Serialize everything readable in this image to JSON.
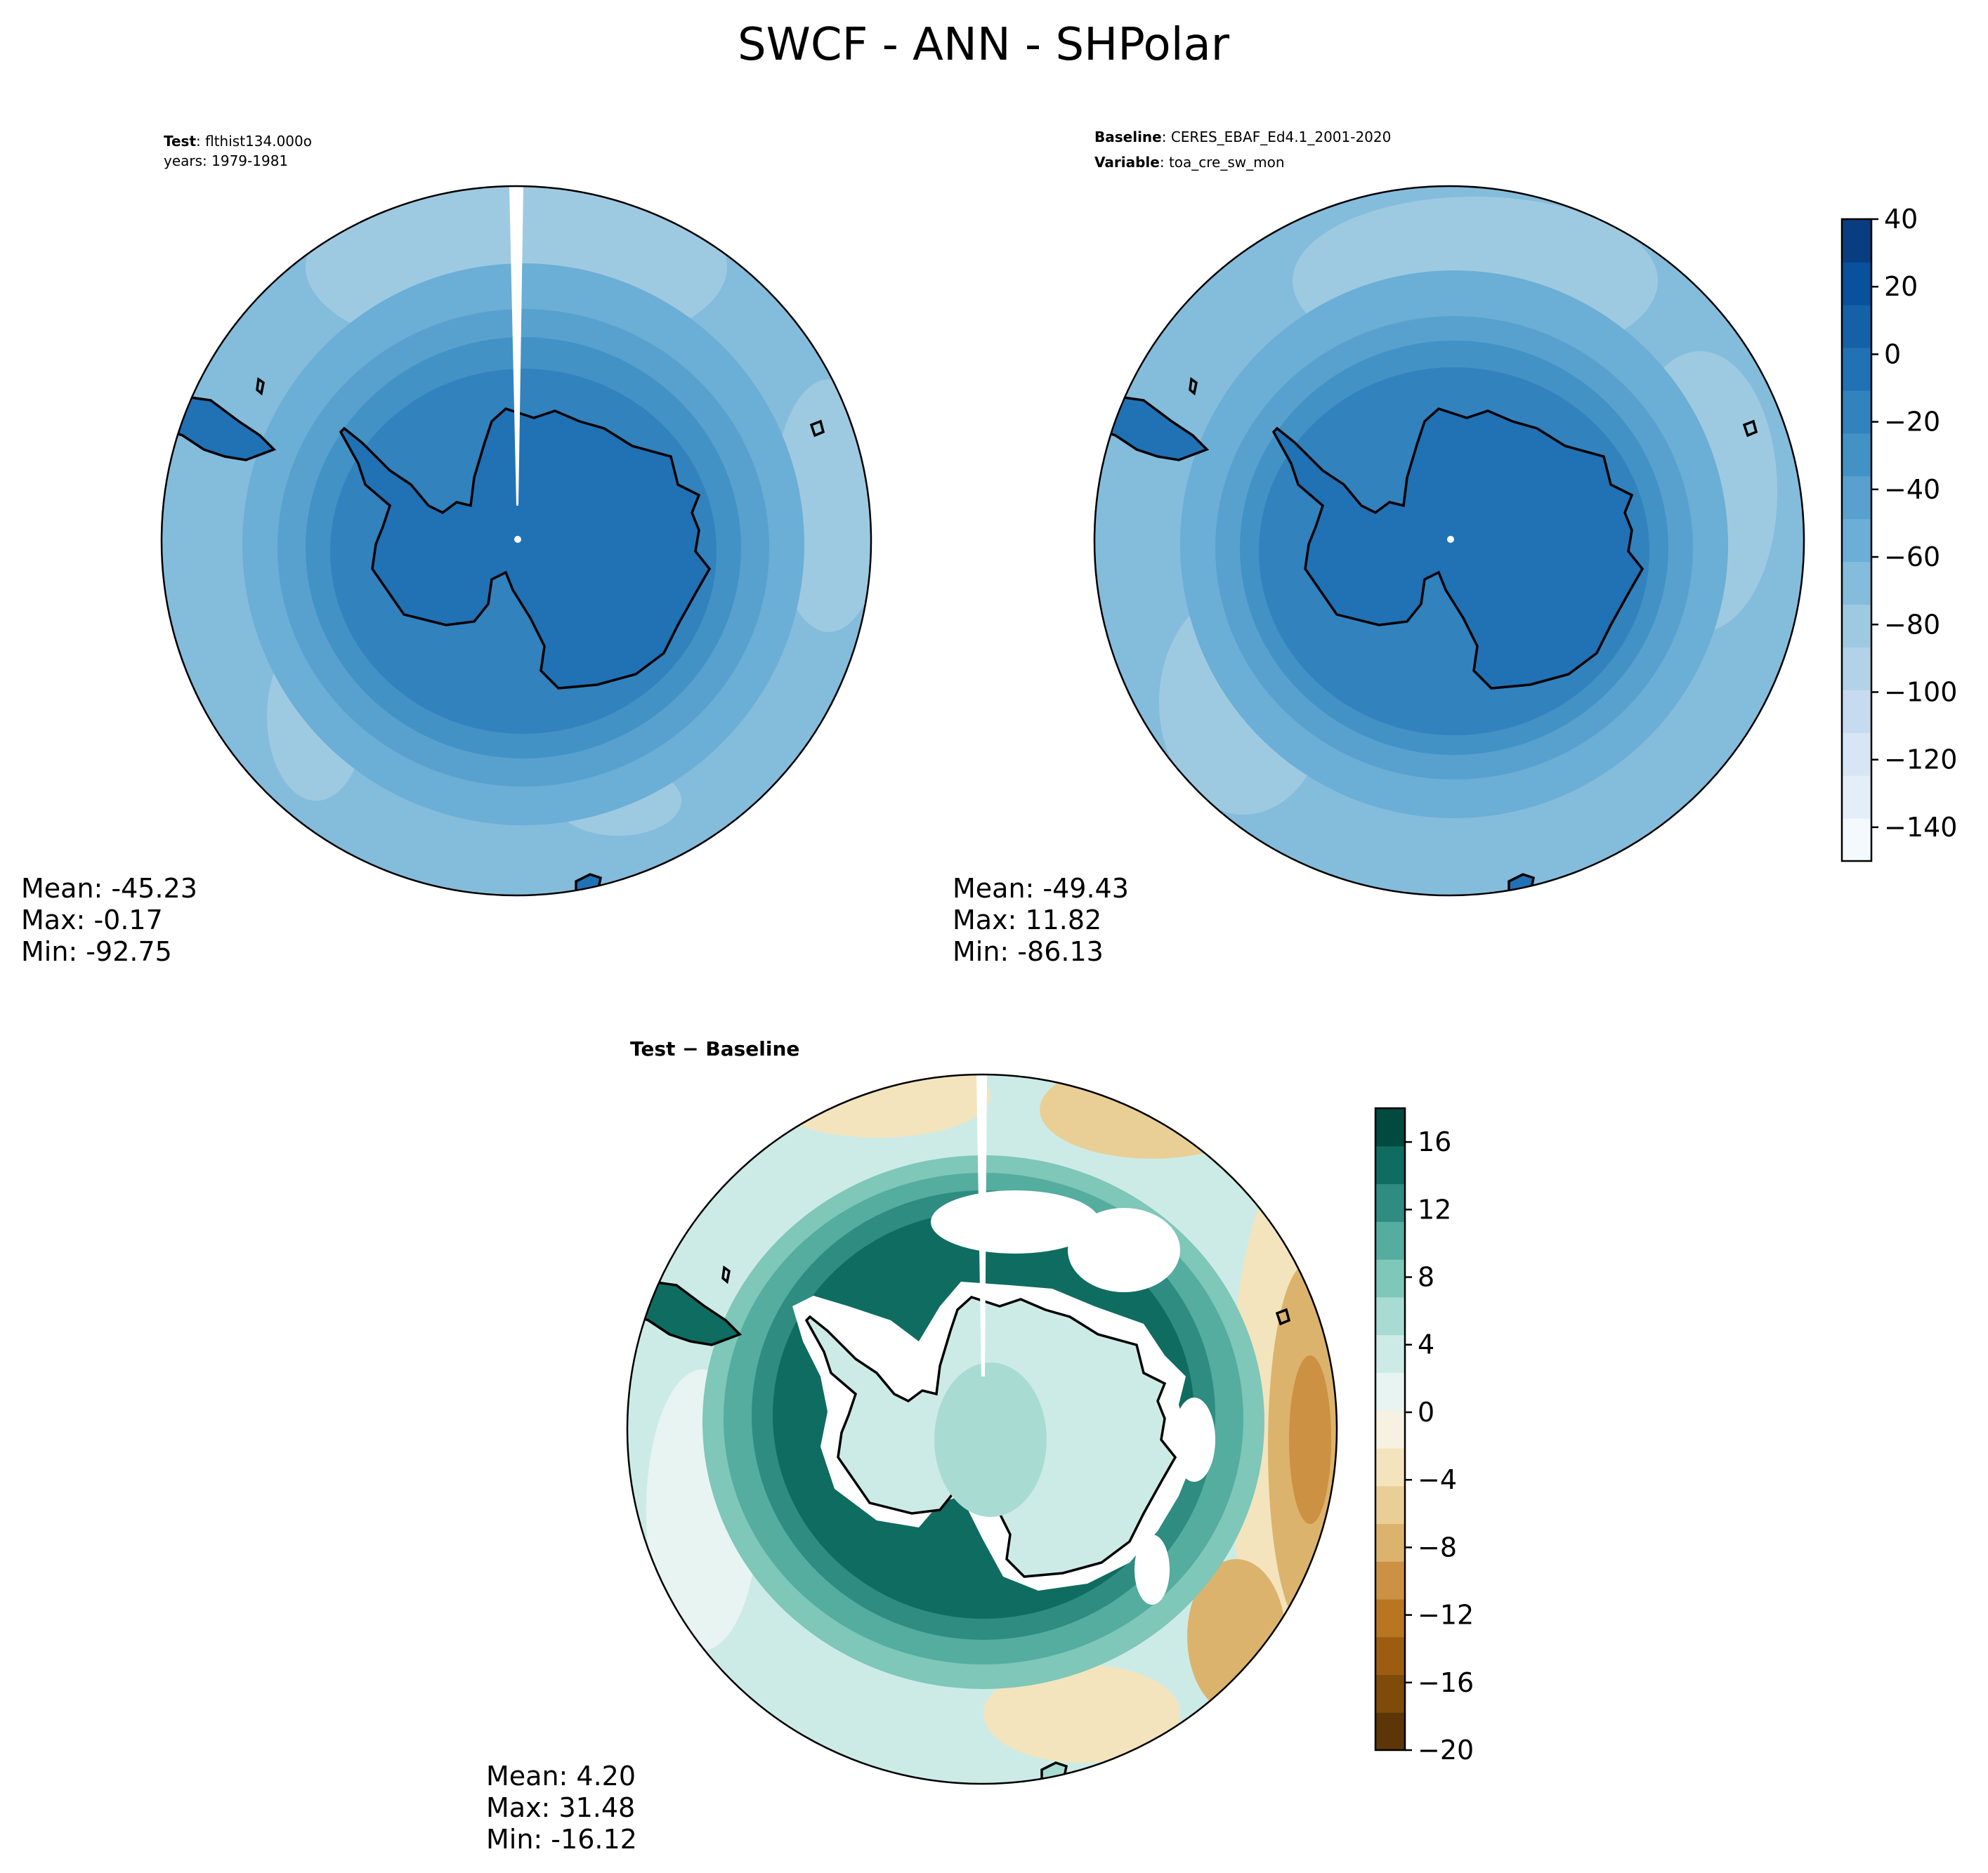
{
  "figure": {
    "title": "SWCF - ANN - SHPolar"
  },
  "panels": {
    "test": {
      "label_bold": "Test",
      "label_rest": ": flthist134.000o",
      "years": "years: 1979-1981",
      "stats": {
        "mean": "Mean: -45.23",
        "max": "Max: -0.17",
        "min": "Min: -92.75"
      }
    },
    "baseline": {
      "label_bold": "Baseline",
      "label_rest": ": CERES_EBAF_Ed4.1_2001-2020",
      "var_bold": "Variable",
      "var_rest": ": toa_cre_sw_mon",
      "stats": {
        "mean": "Mean: -49.43",
        "max": "Max: 11.82",
        "min": "Min: -86.13"
      }
    },
    "diff": {
      "label": "Test − Baseline",
      "stats": {
        "mean": "Mean:  4.20",
        "max": "Max: 31.48",
        "min": "Min: -16.12"
      }
    }
  },
  "colorbars": {
    "top": {
      "ticks": [
        "40",
        "20",
        "0",
        "−20",
        "−40",
        "−60",
        "−80",
        "−100",
        "−120",
        "−140"
      ],
      "range": [
        -150,
        40
      ],
      "colors": [
        "#f4f9fe",
        "#e3eef9",
        "#d6e6f4",
        "#c6dbef",
        "#b2d2e8",
        "#9ecae1",
        "#84bcdc",
        "#6baed6",
        "#58a1cf",
        "#4292c6",
        "#3282be",
        "#2171b5",
        "#1461a8",
        "#08519c",
        "#083e80"
      ]
    },
    "bottom": {
      "ticks": [
        "16",
        "12",
        "8",
        "4",
        "0",
        "−4",
        "−8",
        "−12",
        "−16",
        "−20"
      ],
      "range": [
        -20,
        18
      ],
      "colors": [
        "#5c3606",
        "#7e4b0a",
        "#9c5d10",
        "#b7761f",
        "#cc9142",
        "#dcb36c",
        "#e9cf95",
        "#f3e4bd",
        "#f7f1e1",
        "#e8f4f2",
        "#cdebe6",
        "#a8dcd3",
        "#7ec7b9",
        "#54ad9f",
        "#2e8c80",
        "#0f6c60",
        "#014a40"
      ]
    }
  }
}
